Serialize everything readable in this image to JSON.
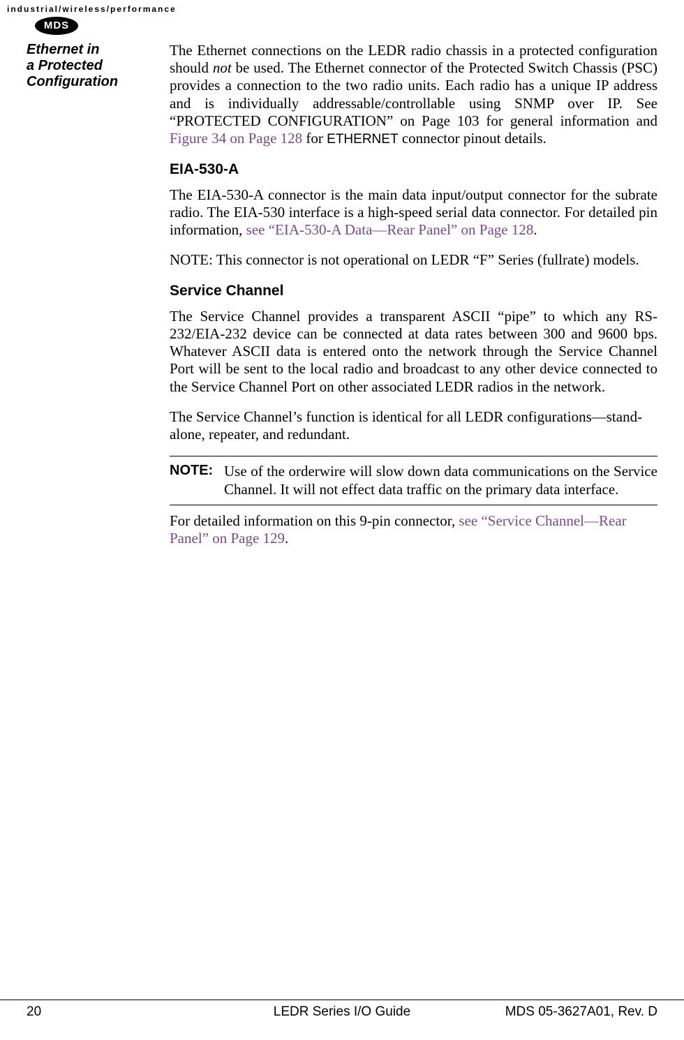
{
  "header": {
    "tagline": "industrial/wireless/performance",
    "logo_text": "MDS"
  },
  "sidebar": {
    "heading_line1": "Ethernet in",
    "heading_line2": "a Protected",
    "heading_line3": "Configuration"
  },
  "content": {
    "p1_a": "The Ethernet connections on the LEDR radio chassis in a protected configuration should ",
    "p1_not": "not",
    "p1_b": " be used. The Ethernet connector of the Protected Switch Chassis (PSC) provides a connection to the two radio units. Each radio has a unique IP address and is individually addressable/controllable using SNMP over IP. See “PROTECTED CONFIGURATION” on Page 103 for general information and ",
    "p1_link": "Figure 34 on Page 128",
    "p1_c": " for ",
    "p1_ethernet": "ETHERNET",
    "p1_d": " connector pinout details.",
    "h_eia": "EIA-530-A",
    "p2_a": "The EIA-530-A connector is the main data input/output connector for the subrate radio. The EIA-530 interface is a high-speed serial data connector. For detailed pin information, ",
    "p2_link": "see “EIA-530-A Data—Rear Panel” on Page 128",
    "p2_b": ".",
    "p3": "NOTE: This connector is not operational on LEDR “F” Series (fullrate) models.",
    "h_service": "Service Channel",
    "p4": "The Service Channel provides a transparent ASCII “pipe” to which any RS-232/EIA-232 device can be connected at data rates between 300 and 9600 bps. Whatever ASCII data is entered onto the network through the Service Channel Port will be sent to the local radio and broadcast to any other device connected to the Service Channel Port on other associated LEDR radios in the network.",
    "p5": "The Service Channel’s function is identical for all LEDR configurations—stand-alone, repeater, and redundant.",
    "note_label": "NOTE:",
    "note_text": "Use of the orderwire will slow down data communications on the Service Channel. It will not effect data traffic on the primary data interface.",
    "p6_a": "For detailed information on this 9-pin connector, ",
    "p6_link": "see “Service Channel—Rear Panel” on Page 129",
    "p6_b": "."
  },
  "footer": {
    "page_number": "20",
    "title": "LEDR Series I/O Guide",
    "docid": "MDS 05-3627A01, Rev. D"
  },
  "colors": {
    "link": "#7a4a8a",
    "text": "#000000",
    "bg": "#ffffff"
  }
}
